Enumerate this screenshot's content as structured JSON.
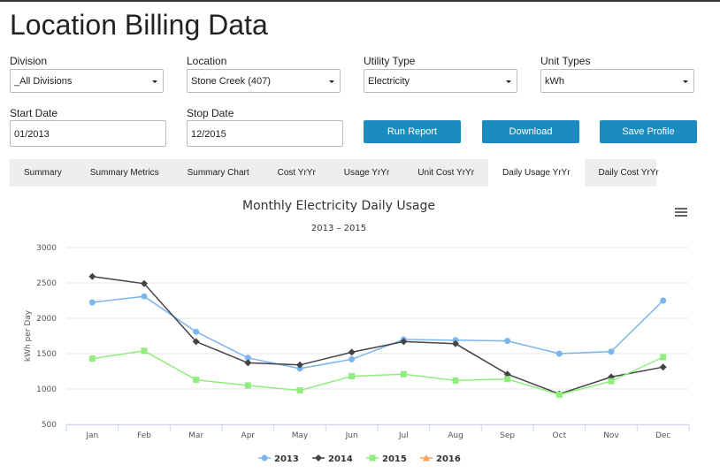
{
  "header": {
    "title": "Location Billing Data"
  },
  "form": {
    "fields": [
      {
        "label": "Division",
        "value": "_All Divisions"
      },
      {
        "label": "Location",
        "value": "Stone Creek (407)"
      },
      {
        "label": "Utility Type",
        "value": "Electricity"
      },
      {
        "label": "Unit Types",
        "value": "kWh"
      },
      {
        "label": "Start Date",
        "value": "01/2013"
      },
      {
        "label": "Stop Date",
        "value": "12/2015"
      }
    ],
    "buttons": [
      "Run Report",
      "Download",
      "Save Profile"
    ]
  },
  "tabs": [
    "Summary",
    "Summary Metrics",
    "Summary Chart",
    "Cost YrYr",
    "Usage YrYr",
    "Unit Cost YrYr",
    "Daily Usage YrYr",
    "Daily Cost YrYr"
  ],
  "chart_data": {
    "type": "line",
    "title": "Monthly Electricity Daily Usage",
    "subtitle": "2013 – 2015",
    "y_label": "kWh per Day",
    "categories": [
      "Jan",
      "Feb",
      "Mar",
      "Apr",
      "May",
      "Jun",
      "Jul",
      "Aug",
      "Sep",
      "Oct",
      "Nov",
      "Dec"
    ],
    "series": [
      {
        "name": "2013",
        "color": "#7cb5ec",
        "marker": "circle",
        "values": [
          2225,
          2310,
          1810,
          1440,
          1290,
          1420,
          1700,
          1690,
          1680,
          1500,
          1530,
          2250
        ]
      },
      {
        "name": "2014",
        "color": "#434348",
        "marker": "diamond",
        "values": [
          2590,
          2490,
          1670,
          1370,
          1340,
          1520,
          1670,
          1640,
          1210,
          930,
          1170,
          1310
        ]
      },
      {
        "name": "2015",
        "color": "#90ed7d",
        "marker": "square",
        "values": [
          1430,
          1540,
          1130,
          1050,
          980,
          1180,
          1210,
          1120,
          1140,
          920,
          1110,
          1450
        ]
      },
      {
        "name": "2016",
        "color": "#f7a35c",
        "marker": "triangle",
        "values": [
          null,
          null,
          null,
          null,
          null,
          null,
          null,
          null,
          null,
          null,
          null,
          null
        ]
      }
    ],
    "ylim": [
      500,
      3000
    ],
    "yticks": [
      500,
      1000,
      1500,
      2000,
      2500,
      3000
    ],
    "grid": true
  }
}
